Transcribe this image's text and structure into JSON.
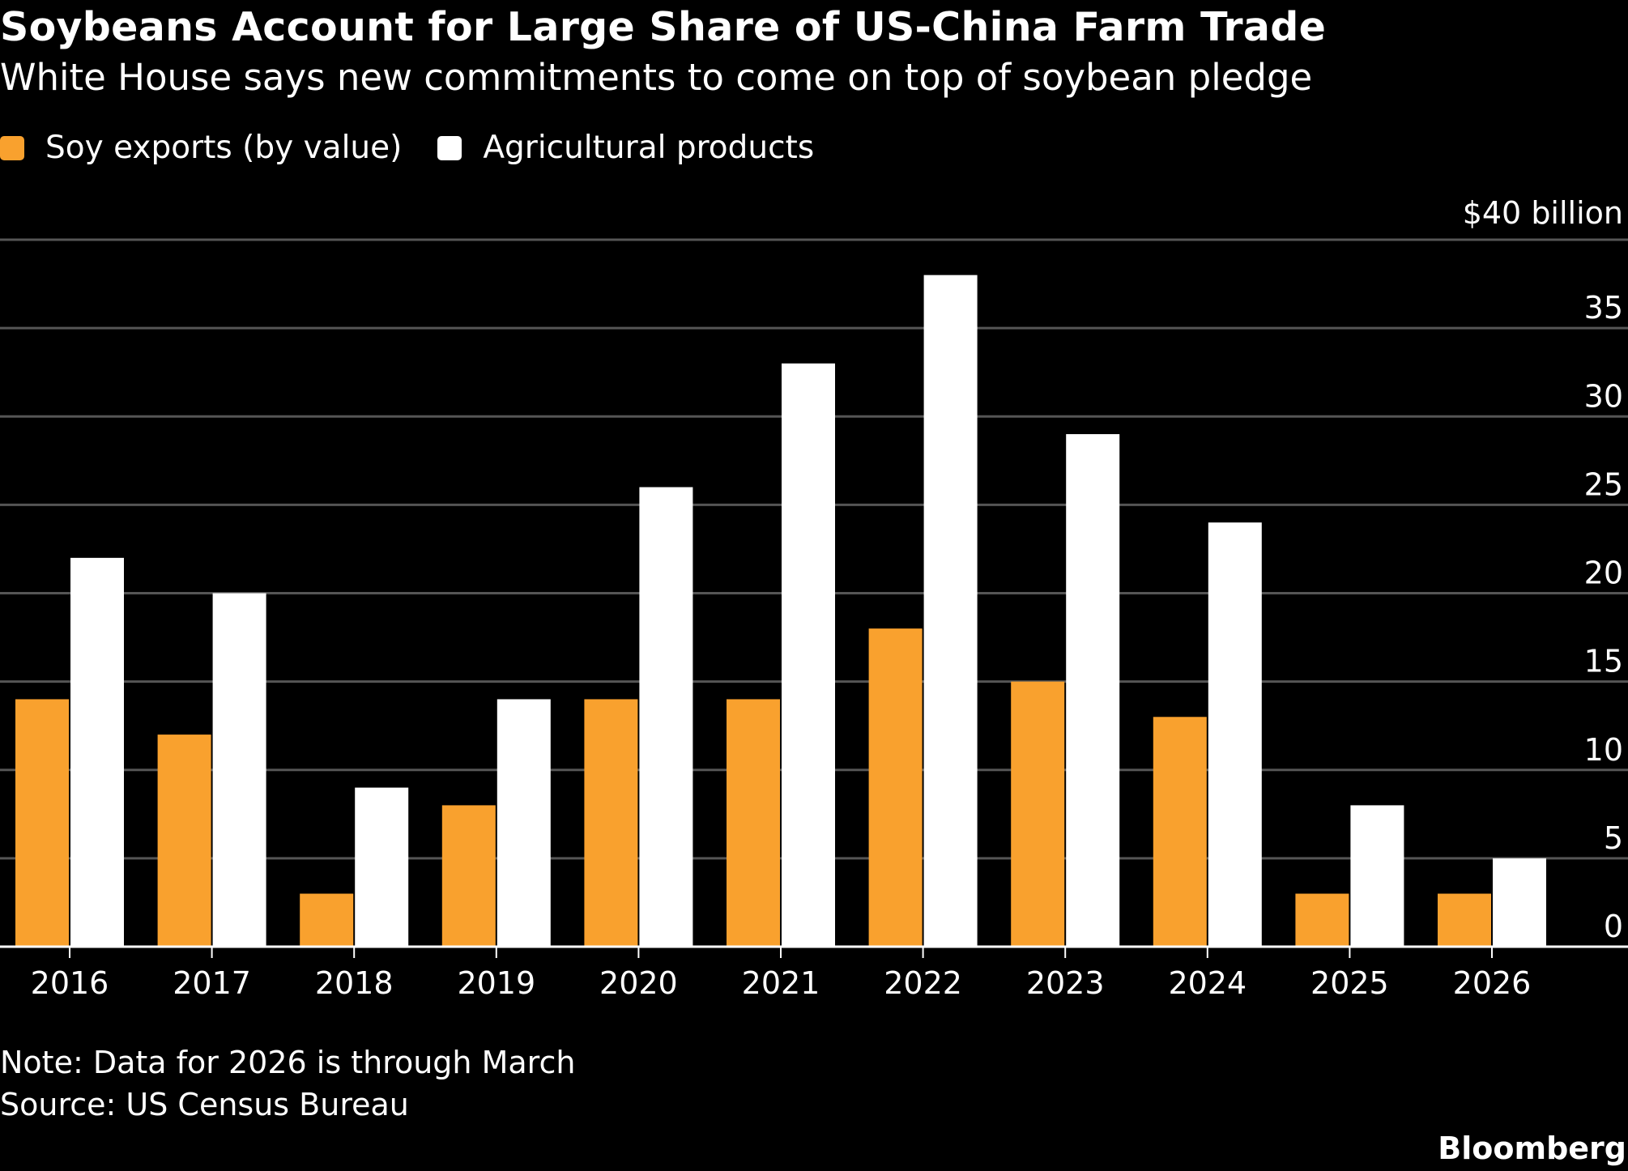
{
  "header": {
    "title": "Soybeans Account for Large Share of US-China Farm Trade",
    "subtitle": "White House says new commitments to come on top of soybean pledge"
  },
  "legend": [
    {
      "label": "Soy exports (by value)",
      "color": "#f9a12e"
    },
    {
      "label": "Agricultural products",
      "color": "#ffffff"
    }
  ],
  "footer": {
    "note": "Note: Data for 2026 is through March",
    "source": "Source: US Census Bureau",
    "brand": "Bloomberg"
  },
  "chart_data": {
    "type": "bar",
    "title": "Soybeans Account for Large Share of US-China Farm Trade",
    "subtitle": "White House says new commitments to come on top of soybean pledge",
    "categories": [
      "2016",
      "2017",
      "2018",
      "2019",
      "2020",
      "2021",
      "2022",
      "2023",
      "2024",
      "2025",
      "2026"
    ],
    "series": [
      {
        "name": "Soy exports (by value)",
        "color": "#f9a12e",
        "values": [
          14,
          12,
          3,
          8,
          14,
          14,
          18,
          15,
          13,
          3,
          3
        ]
      },
      {
        "name": "Agricultural products",
        "color": "#ffffff",
        "values": [
          22,
          20,
          9,
          14,
          26,
          33,
          38,
          29,
          24,
          8,
          5
        ]
      }
    ],
    "ylim": [
      0,
      40
    ],
    "yticks": [
      0,
      5,
      10,
      15,
      20,
      25,
      30,
      35,
      40
    ],
    "ytick_labels": [
      "0",
      "5",
      "10",
      "15",
      "20",
      "25",
      "30",
      "35",
      "$40 billion"
    ],
    "yaxis_position": "right",
    "grid": true,
    "legend_position": "top-left",
    "background": "#000000",
    "gridline_color": "#555555"
  }
}
